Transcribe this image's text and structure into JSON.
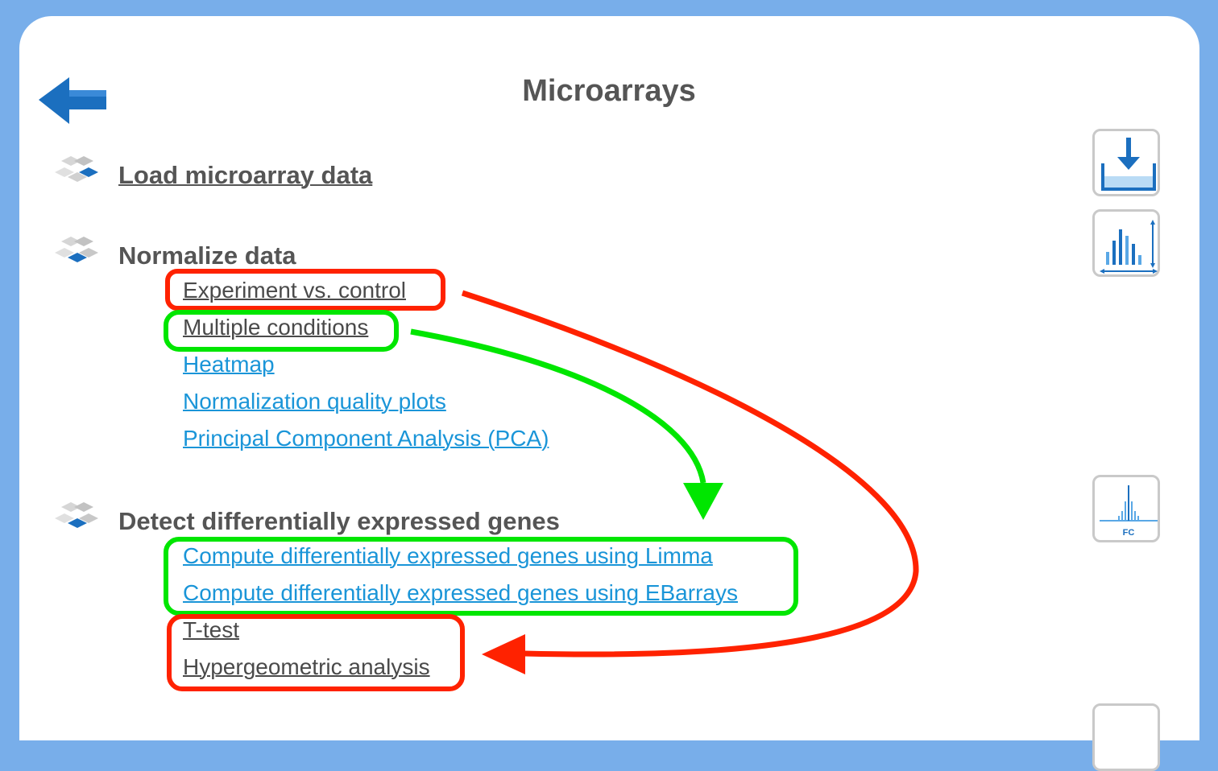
{
  "page": {
    "title": "Microarrays"
  },
  "icons": {
    "back": "back-arrow-icon"
  },
  "sections": {
    "load": {
      "title": "Load microarray data"
    },
    "normalize": {
      "title": "Normalize data",
      "links": [
        "Experiment vs. control",
        "Multiple conditions",
        "Heatmap",
        "Normalization quality plots",
        "Principal Component Analysis (PCA)"
      ]
    },
    "detect": {
      "title": "Detect differentially expressed genes",
      "links": [
        "Compute differentially expressed genes using Limma",
        "Compute differentially expressed genes using EBarrays",
        "T-test",
        "Hypergeometric analysis"
      ]
    }
  },
  "tools": {
    "fc_label": "FC"
  },
  "colors": {
    "background": "#78aeea",
    "title_text": "#555555",
    "link_blue": "#1a95d8",
    "link_dark": "#4a4a4a",
    "annotation_red": "#ff2200",
    "annotation_green": "#00e600"
  }
}
